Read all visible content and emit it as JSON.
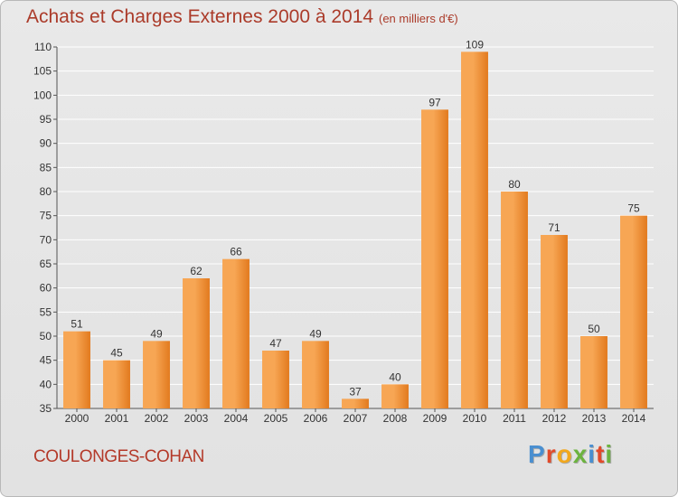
{
  "title": "Achats et Charges Externes 2000 à 2014",
  "unit_note": "(en milliers d'€)",
  "commune": "COULONGES-COHAN",
  "logo": {
    "text": "Proxiti",
    "letter_colors": [
      "#4a8fd0",
      "#e24a2a",
      "#f2a81d",
      "#6cb33f",
      "#4a8fd0",
      "#e24a2a",
      "#6cb33f"
    ]
  },
  "colors": {
    "bar_light": "#f7a654",
    "bar_dark": "#e27a1e",
    "text": "#333333",
    "grid": "#ffffff",
    "title": "#ab3b2a"
  },
  "chart_data": {
    "type": "bar",
    "categories": [
      "2000",
      "2001",
      "2002",
      "2003",
      "2004",
      "2005",
      "2006",
      "2007",
      "2008",
      "2009",
      "2010",
      "2011",
      "2012",
      "2013",
      "2014"
    ],
    "values": [
      51,
      45,
      49,
      62,
      66,
      47,
      49,
      37,
      40,
      97,
      109,
      80,
      71,
      50,
      75
    ],
    "ylim": [
      35,
      110
    ],
    "yticks": [
      35,
      40,
      45,
      50,
      55,
      60,
      65,
      70,
      75,
      80,
      85,
      90,
      95,
      100,
      105,
      110
    ],
    "xlabel": "",
    "ylabel": "",
    "grid": true,
    "data_labels": true
  }
}
